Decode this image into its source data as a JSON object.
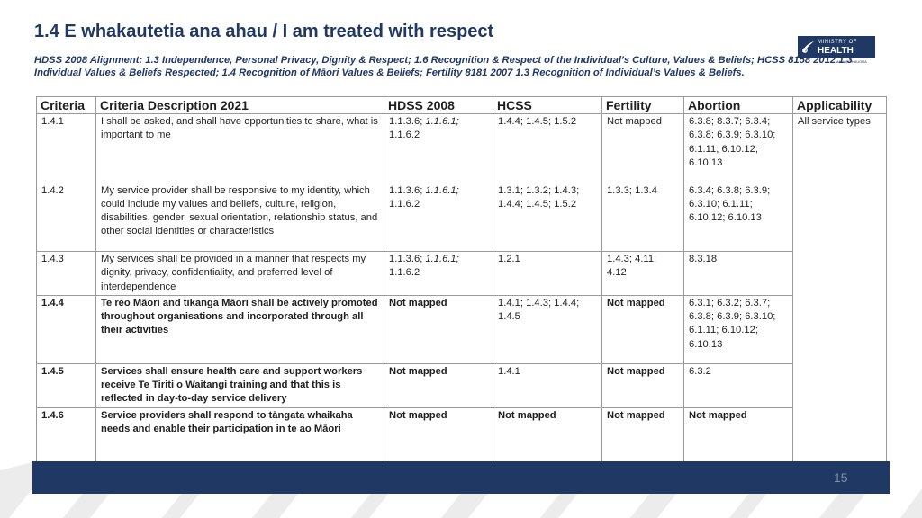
{
  "page": {
    "title": "1.4 E whakautetia ana ahau / I am treated with respect",
    "subtitle": "HDSS 2008 Alignment: 1.3 Independence, Personal Privacy, Dignity & Respect; 1.6 Recognition & Respect of the Individual’s Culture, Values & Beliefs; HCSS 8158 2012 1.3 Individual Values & Beliefs Respected; 1.4 Recognition of Māori Values & Beliefs; Fertility 8181 2007 1.3 Recognition of Individual’s Values & Beliefs.",
    "page_number": "15"
  },
  "logo": {
    "line1": "MINISTRY OF",
    "line2": "HEALTH",
    "sub": "MANATŪ HAUORA"
  },
  "table": {
    "headers": [
      "Criteria",
      "Criteria Description 2021",
      "HDSS 2008",
      "HCSS",
      "Fertility",
      "Abortion",
      "Applicability"
    ],
    "applicability": "All service types",
    "rows": [
      {
        "criteria": "1.4.1",
        "description": "I shall be asked, and shall have opportunities to share, what is important to me",
        "hdss_a": "1.1.3.6; ",
        "hdss_b": "1.1.6.1;",
        "hdss_c": "1.1.6.2",
        "hdss": "",
        "hcss": "1.4.4; 1.4.5; 1.5.2",
        "fertility": "Not mapped",
        "abortion": "6.3.8; 8.3.7; 6.3.4; 6.3.8; 6.3.9; 6.3.10; 6.1.11; 6.10.12; 6.10.13"
      },
      {
        "criteria": "1.4.2",
        "description": "My service provider shall be responsive to my identity, which could include my values and beliefs, culture, religion, disabilities, gender, sexual orientation, relationship status, and other social identities or characteristics",
        "hdss_a": "1.1.3.6; ",
        "hdss_b": "1.1.6.1;",
        "hdss_c": "1.1.6.2",
        "hcss": "1.3.1; 1.3.2; 1.4.3; 1.4.4; 1.4.5; 1.5.2",
        "fertility": "1.3.3; 1.3.4",
        "abortion": "6.3.4; 6.3.8; 6.3.9; 6.3.10; 6.1.11; 6.10.12; 6.10.13"
      },
      {
        "criteria": "1.4.3",
        "description": "My services shall be provided in a manner that respects my dignity, privacy, confidentiality, and preferred level of interdependence",
        "hdss_a": "1.1.3.6; ",
        "hdss_b": "1.1.6.1;",
        "hdss_c": "1.1.6.2",
        "hcss": " 1.2.1",
        "fertility": "1.4.3; 4.11; 4.12",
        "abortion": "8.3.18"
      },
      {
        "criteria": "1.4.4",
        "description": "Te reo Māori and tikanga Māori shall be actively promoted throughout organisations and incorporated through all their activities",
        "hdss": "Not mapped",
        "hcss": "1.4.1; 1.4.3; 1.4.4; 1.4.5",
        "fertility": "Not mapped",
        "abortion": "6.3.1; 6.3.2; 6.3.7; 6.3.8; 6.3.9; 6.3.10; 6.1.11; 6.10.12; 6.10.13"
      },
      {
        "criteria": "1.4.5",
        "description": "Services shall ensure health care and support workers receive Te Tiriti o Waitangi training and that this is reflected in day-to-day service delivery",
        "hdss": "Not mapped",
        "hcss": " 1.4.1",
        "fertility": "Not mapped",
        "abortion": "6.3.2"
      },
      {
        "criteria": "1.4.6",
        "description": "Service providers shall respond to tāngata whaikaha needs and enable their participation in te ao Māori",
        "hdss": "Not mapped",
        "hcss": "Not mapped",
        "fertility": "Not mapped",
        "abortion": "Not mapped"
      }
    ]
  },
  "colors": {
    "navy": "#1f3864",
    "border": "#9a9a9a",
    "pattern": "#e8e8e8"
  }
}
